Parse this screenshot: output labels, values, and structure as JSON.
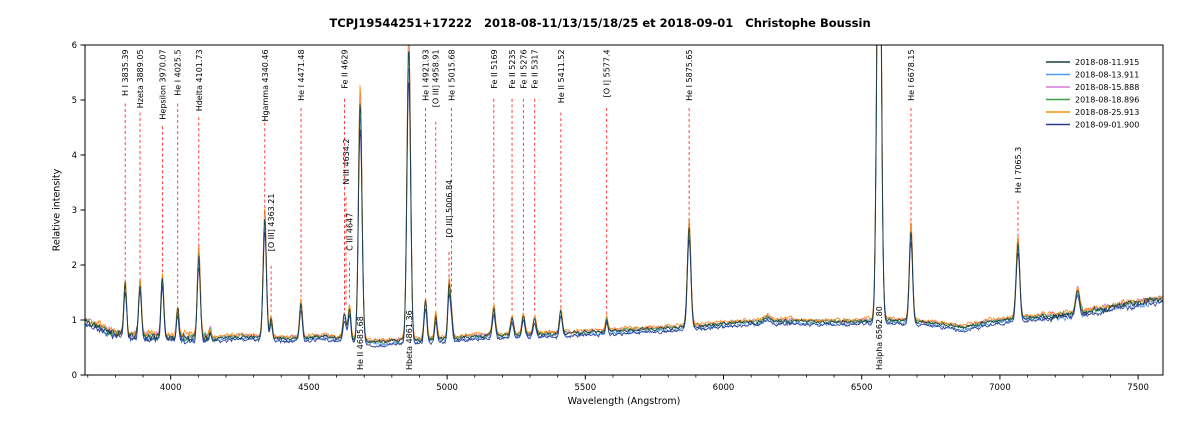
{
  "chart_data": {
    "type": "line",
    "title": "TCPJ19544251+17222   2018-08-11/13/15/18/25 et 2018-09-01   Christophe Boussin",
    "xlabel": "Wavelength (Angstrom)",
    "ylabel": "Relative intensity",
    "xlim": [
      3690,
      7590
    ],
    "ylim": [
      0,
      6
    ],
    "xticks": [
      4000,
      4500,
      5000,
      5500,
      6000,
      6500,
      7000,
      7500
    ],
    "yticks": [
      0,
      1,
      2,
      3,
      4,
      5,
      6
    ],
    "legend_position": "top-right",
    "axis_color": "#000000",
    "annotation_color": "#ff2d2d",
    "noise": {
      "base": 0.035
    },
    "series": [
      {
        "label": "2018-08-11.915",
        "color": "#17413f",
        "offset": 0,
        "peak_scale": 1,
        "seed": 11,
        "zorder": 6
      },
      {
        "label": "2018-08-13.911",
        "color": "#4f9bf5",
        "offset": -0.035,
        "peak_scale": 0.95,
        "seed": 23,
        "zorder": 1
      },
      {
        "label": "2018-08-15.888",
        "color": "#d678d6",
        "offset": 0.02,
        "peak_scale": 1.04,
        "seed": 37,
        "zorder": 2
      },
      {
        "label": "2018-08-18.896",
        "color": "#3da048",
        "offset": 0.012,
        "peak_scale": 0.99,
        "seed": 51,
        "zorder": 3
      },
      {
        "label": "2018-08-25.913",
        "color": "#ff8c1a",
        "offset": 0.04,
        "peak_scale": 1.06,
        "seed": 67,
        "zorder": 4
      },
      {
        "label": "2018-09-01.900",
        "color": "#2a3d8f",
        "offset": -0.055,
        "peak_scale": 0.9,
        "seed": 83,
        "zorder": 5
      }
    ],
    "continuum": [
      [
        3690,
        0.98
      ],
      [
        3750,
        0.85
      ],
      [
        3800,
        0.76
      ],
      [
        3850,
        0.72
      ],
      [
        3950,
        0.7
      ],
      [
        4050,
        0.68
      ],
      [
        4150,
        0.66
      ],
      [
        4250,
        0.7
      ],
      [
        4350,
        0.68
      ],
      [
        4450,
        0.66
      ],
      [
        4550,
        0.7
      ],
      [
        4650,
        0.64
      ],
      [
        4750,
        0.6
      ],
      [
        4830,
        0.62
      ],
      [
        4900,
        0.63
      ],
      [
        5000,
        0.66
      ],
      [
        5100,
        0.7
      ],
      [
        5200,
        0.72
      ],
      [
        5300,
        0.73
      ],
      [
        5450,
        0.76
      ],
      [
        5600,
        0.8
      ],
      [
        5750,
        0.84
      ],
      [
        5900,
        0.88
      ],
      [
        6000,
        0.93
      ],
      [
        6100,
        0.96
      ],
      [
        6250,
        0.98
      ],
      [
        6400,
        0.96
      ],
      [
        6500,
        0.98
      ],
      [
        6600,
        0.99
      ],
      [
        6750,
        0.95
      ],
      [
        6870,
        0.86
      ],
      [
        6950,
        0.96
      ],
      [
        7050,
        1.02
      ],
      [
        7150,
        1.06
      ],
      [
        7250,
        1.1
      ],
      [
        7350,
        1.18
      ],
      [
        7450,
        1.28
      ],
      [
        7590,
        1.38
      ]
    ],
    "peaks": [
      [
        3835.39,
        0.92,
        5
      ],
      [
        3889.05,
        0.98,
        5
      ],
      [
        3970.07,
        1.08,
        5
      ],
      [
        4025.5,
        0.52,
        4.5
      ],
      [
        4101.73,
        1.52,
        5.5
      ],
      [
        4143,
        0.15,
        4
      ],
      [
        4340.46,
        2.18,
        6
      ],
      [
        4363.21,
        0.34,
        4.5
      ],
      [
        4471.48,
        0.64,
        5
      ],
      [
        4629,
        0.44,
        6
      ],
      [
        4647,
        0.56,
        5
      ],
      [
        4685.68,
        4.35,
        6.5
      ],
      [
        4861.36,
        5.35,
        6.5
      ],
      [
        4921.93,
        0.72,
        5
      ],
      [
        4958.91,
        0.44,
        4.5
      ],
      [
        5006.84,
        0.92,
        4.5
      ],
      [
        5015.68,
        0.42,
        4.5
      ],
      [
        5169,
        0.5,
        5.5
      ],
      [
        5235,
        0.3,
        5.5
      ],
      [
        5276,
        0.34,
        5.5
      ],
      [
        5317,
        0.3,
        5.5
      ],
      [
        5411.52,
        0.4,
        5
      ],
      [
        5577.4,
        0.22,
        4
      ],
      [
        5875.65,
        1.82,
        6.5
      ],
      [
        6158,
        0.08,
        12
      ],
      [
        6562.8,
        9.5,
        7.5
      ],
      [
        6678.15,
        1.68,
        6
      ],
      [
        7065.3,
        1.38,
        6.5
      ],
      [
        7281,
        0.42,
        7
      ]
    ],
    "line_annotations": [
      {
        "label": "H I 3835.39",
        "x": 3835.39,
        "line_to": 1.72
      },
      {
        "label": "Hzeta 3889.05",
        "x": 3889.05,
        "line_to": 1.78
      },
      {
        "label": "Hepsilon 3970.07",
        "x": 3970.07,
        "line_to": 1.85
      },
      {
        "label": "He I 4025.5",
        "x": 4025.5,
        "line_to": 1.3
      },
      {
        "label": "Hdelta 4101.73",
        "x": 4101.73,
        "line_to": 2.28
      },
      {
        "label": "Hgamma 4340.46",
        "x": 4340.46,
        "line_to": 2.92
      },
      {
        "label": "[O III] 4363.21",
        "x": 4363.21,
        "label_y": 3.3,
        "line_to": 1.15
      },
      {
        "label": "He I 4471.48",
        "x": 4471.48,
        "line_to": 1.42
      },
      {
        "label": "Fe II 4629",
        "x": 4629,
        "line_to": 1.18
      },
      {
        "label": "N III 4634.2",
        "x": 4634.2,
        "label_y": 4.3,
        "line_to": 1.28
      },
      {
        "label": "C III 4647",
        "x": 4647,
        "label_y": 2.95,
        "line_to": 1.38
      },
      {
        "label": "He I 4921.93",
        "x": 4921.93,
        "line_to": 1.45
      },
      {
        "label": "[O III] 4958.91",
        "x": 4958.91,
        "line_to": 1.22
      },
      {
        "label": "He I 5015.68",
        "x": 5015.68,
        "line_to": 1.5
      },
      {
        "label": "[O III] 5006.84",
        "x": 5006.84,
        "label_y": 3.55,
        "line_to": 1.68
      },
      {
        "label": "Fe II 5169",
        "x": 5169,
        "line_to": 1.3
      },
      {
        "label": "Fe II 5235",
        "x": 5235,
        "line_to": 1.12
      },
      {
        "label": "Fe II 5276",
        "x": 5276,
        "line_to": 1.14
      },
      {
        "label": "Fe II 5317",
        "x": 5317,
        "line_to": 1.12
      },
      {
        "label": "He II 5411.52",
        "x": 5411.52,
        "line_to": 1.22
      },
      {
        "label": "[O I] 5577.4",
        "x": 5577.4,
        "line_to": 1.05
      },
      {
        "label": "He I 5875.65",
        "x": 5875.65,
        "line_to": 2.72
      },
      {
        "label": "He I 6678.15",
        "x": 6678.15,
        "line_to": 2.72
      },
      {
        "label": "He I 7065.3",
        "x": 7065.3,
        "label_y": 4.15,
        "line_to": 2.45
      }
    ],
    "bottom_annotations": [
      {
        "label": "He II 4685.68",
        "x": 4685.68
      },
      {
        "label": "Hbeta 4861.36",
        "x": 4861.36
      },
      {
        "label": "Halpha 6562.80",
        "x": 6562.8
      }
    ]
  }
}
